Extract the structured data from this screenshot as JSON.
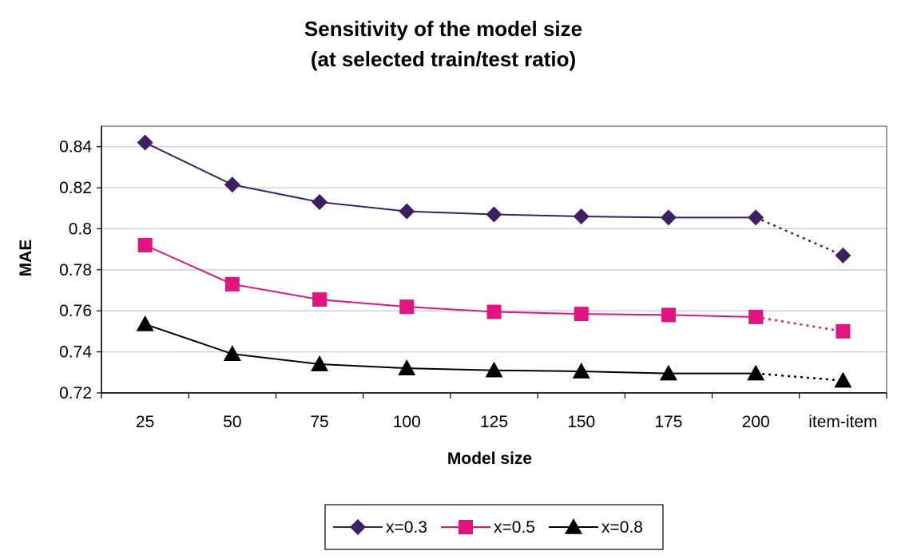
{
  "chart_data": {
    "type": "line",
    "title": "Sensitivity of the model size",
    "subtitle": "(at selected train/test ratio)",
    "xlabel": "Model size",
    "ylabel": "MAE",
    "categories": [
      "25",
      "50",
      "75",
      "100",
      "125",
      "150",
      "175",
      "200",
      "item-item"
    ],
    "ylim": [
      0.72,
      0.85
    ],
    "yticks": [
      "0.72",
      "0.74",
      "0.76",
      "0.78",
      "0.8",
      "0.82",
      "0.84"
    ],
    "grid": true,
    "legend_position": "bottom",
    "series": [
      {
        "name": "x=0.3",
        "marker": "diamond",
        "color": "#3d1f66",
        "values": [
          0.842,
          0.8215,
          0.813,
          0.8085,
          0.807,
          0.806,
          0.8055,
          0.8055,
          0.787
        ]
      },
      {
        "name": "x=0.5",
        "marker": "square",
        "color": "#e0157f",
        "values": [
          0.792,
          0.773,
          0.7655,
          0.762,
          0.7595,
          0.7585,
          0.758,
          0.757,
          0.75
        ]
      },
      {
        "name": "x=0.8",
        "marker": "triangle",
        "color": "#000000",
        "values": [
          0.7535,
          0.739,
          0.734,
          0.732,
          0.731,
          0.7305,
          0.7295,
          0.7295,
          0.726
        ]
      }
    ],
    "annotations": "Last segment (200 to item-item) drawn dotted for each series"
  }
}
